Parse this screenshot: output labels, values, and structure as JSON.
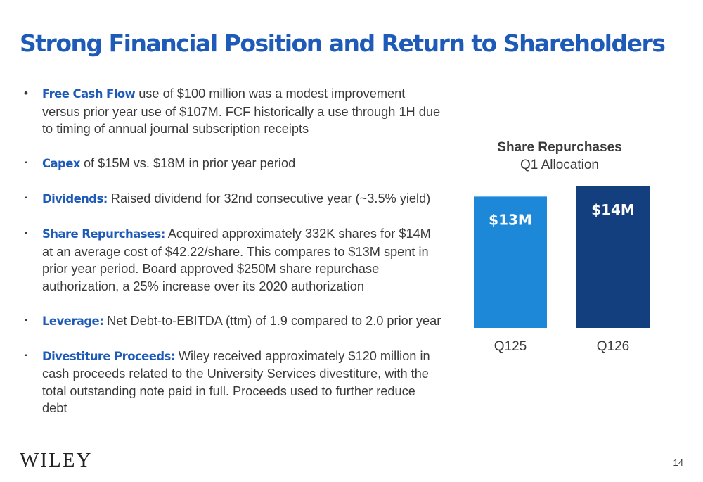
{
  "title": "Strong Financial Position and Return to Shareholders",
  "bullets": [
    {
      "marker": "•",
      "lead": "Free Cash Flow",
      "text": " use of $100 million was a modest improvement versus prior year use of $107M.  FCF historically a use through 1H due to timing of annual journal subscription receipts"
    },
    {
      "marker": "▪",
      "lead": "Capex",
      "text": " of $15M vs. $18M in prior year period"
    },
    {
      "marker": "▪",
      "lead": "Dividends:",
      "text": " Raised dividend for 32nd consecutive year (~3.5% yield)"
    },
    {
      "marker": "▪",
      "lead": "Share Repurchases:",
      "text": " Acquired approximately 332K shares for $14M at an average cost of $42.22/share.  This compares to $13M spent in prior year period. Board approved $250M share repurchase authorization, a 25% increase over its 2020 authorization"
    },
    {
      "marker": "▪",
      "lead": "Leverage:",
      "text": " Net Debt-to-EBITDA (ttm) of 1.9 compared to 2.0 prior year"
    },
    {
      "marker": "▪",
      "lead": "Divestiture Proceeds:",
      "text": " Wiley received approximately $120 million in cash proceeds related to the University Services divestiture, with the total outstanding note paid in full. Proceeds used to further reduce debt"
    }
  ],
  "chart_data": {
    "type": "bar",
    "title": "Share Repurchases",
    "subtitle": "Q1 Allocation",
    "categories": [
      "Q125",
      "Q126"
    ],
    "values": [
      13,
      14
    ],
    "data_labels": [
      "$13M",
      "$14M"
    ],
    "colors": [
      "#1e88d8",
      "#143f7e"
    ],
    "ylim": [
      0,
      14
    ],
    "grid": false,
    "legend": "none"
  },
  "footer": {
    "logo": "WILEY",
    "page_number": "14"
  }
}
